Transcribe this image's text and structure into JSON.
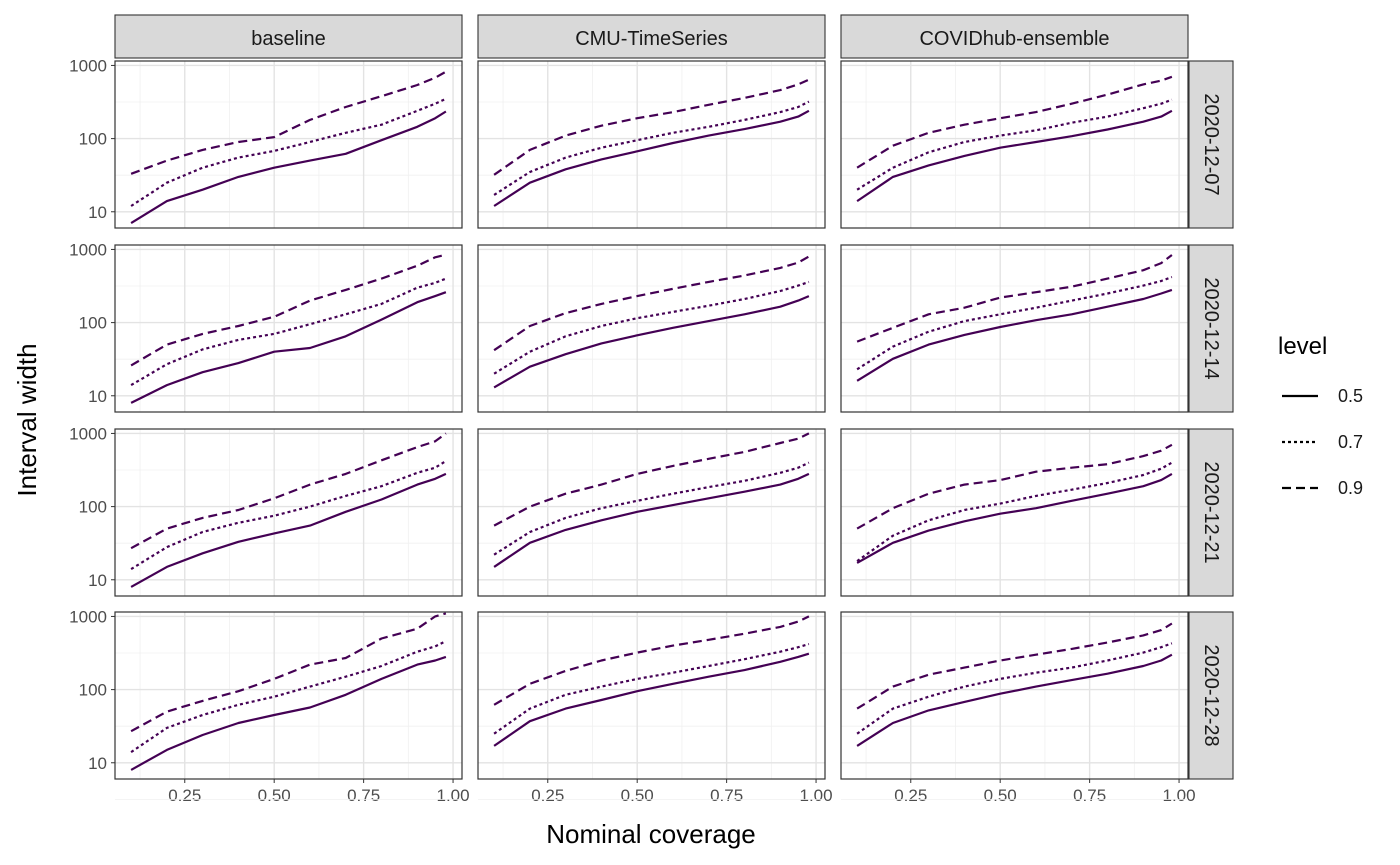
{
  "chart_data": {
    "type": "line",
    "facet_columns": [
      "baseline",
      "CMU-TimeSeries",
      "COVIDhub-ensemble"
    ],
    "facet_rows": [
      "2020-12-07",
      "2020-12-14",
      "2020-12-21",
      "2020-12-28"
    ],
    "xlabel": "Nominal coverage",
    "ylabel": "Interval width",
    "x_ticks": [
      "0.25",
      "0.50",
      "0.75",
      "1.00"
    ],
    "y_ticks": [
      "10",
      "100",
      "1000"
    ],
    "xlim": [
      0.055,
      1.025
    ],
    "ylim": [
      6,
      1150
    ],
    "y_scale": "log10",
    "grid": true,
    "legend": {
      "title": "level",
      "position": "right",
      "entries": [
        {
          "label": "0.5",
          "dash": "solid"
        },
        {
          "label": "0.7",
          "dash": "dotted"
        },
        {
          "label": "0.9",
          "dash": "dashed"
        }
      ]
    },
    "line_color": "#440154",
    "x": [
      0.1,
      0.2,
      0.3,
      0.4,
      0.5,
      0.6,
      0.7,
      0.8,
      0.9,
      0.95,
      0.98
    ],
    "panels": [
      {
        "row": "2020-12-07",
        "col": "baseline",
        "series": [
          {
            "name": "0.5",
            "values": [
              7,
              14,
              20,
              30,
              40,
              50,
              62,
              95,
              145,
              190,
              235
            ]
          },
          {
            "name": "0.7",
            "values": [
              12,
              25,
              40,
              55,
              68,
              90,
              120,
              155,
              240,
              300,
              350
            ]
          },
          {
            "name": "0.9",
            "values": [
              33,
              50,
              70,
              90,
              105,
              180,
              270,
              380,
              540,
              680,
              820
            ]
          }
        ]
      },
      {
        "row": "2020-12-07",
        "col": "CMU-TimeSeries",
        "series": [
          {
            "name": "0.5",
            "values": [
              12,
              25,
              38,
              52,
              67,
              87,
              110,
              135,
              170,
              200,
              240
            ]
          },
          {
            "name": "0.7",
            "values": [
              17,
              35,
              55,
              75,
              95,
              120,
              145,
              180,
              230,
              270,
              320
            ]
          },
          {
            "name": "0.9",
            "values": [
              32,
              70,
              110,
              150,
              190,
              230,
              290,
              360,
              460,
              550,
              640
            ]
          }
        ]
      },
      {
        "row": "2020-12-07",
        "col": "COVIDhub-ensemble",
        "series": [
          {
            "name": "0.5",
            "values": [
              14,
              30,
              43,
              58,
              75,
              90,
              108,
              133,
              170,
              200,
              240
            ]
          },
          {
            "name": "0.7",
            "values": [
              20,
              40,
              65,
              90,
              110,
              130,
              165,
              200,
              260,
              300,
              340
            ]
          },
          {
            "name": "0.9",
            "values": [
              40,
              80,
              120,
              155,
              190,
              230,
              300,
              400,
              550,
              620,
              700
            ]
          }
        ]
      },
      {
        "row": "2020-12-14",
        "col": "baseline",
        "series": [
          {
            "name": "0.5",
            "values": [
              8,
              14,
              21,
              28,
              40,
              45,
              65,
              110,
              190,
              230,
              260
            ]
          },
          {
            "name": "0.7",
            "values": [
              14,
              27,
              43,
              58,
              70,
              95,
              130,
              180,
              300,
              350,
              400
            ]
          },
          {
            "name": "0.9",
            "values": [
              26,
              50,
              70,
              90,
              120,
              200,
              280,
              400,
              600,
              780,
              850
            ]
          }
        ]
      },
      {
        "row": "2020-12-14",
        "col": "CMU-TimeSeries",
        "series": [
          {
            "name": "0.5",
            "values": [
              13,
              25,
              37,
              52,
              67,
              85,
              105,
              130,
              165,
              200,
              230
            ]
          },
          {
            "name": "0.7",
            "values": [
              20,
              40,
              65,
              90,
              115,
              140,
              170,
              210,
              270,
              320,
              360
            ]
          },
          {
            "name": "0.9",
            "values": [
              42,
              90,
              135,
              180,
              230,
              290,
              360,
              440,
              560,
              660,
              800
            ]
          }
        ]
      },
      {
        "row": "2020-12-14",
        "col": "COVIDhub-ensemble",
        "series": [
          {
            "name": "0.5",
            "values": [
              16,
              32,
              50,
              68,
              87,
              108,
              130,
              165,
              210,
              250,
              280
            ]
          },
          {
            "name": "0.7",
            "values": [
              23,
              47,
              75,
              105,
              130,
              160,
              200,
              250,
              320,
              370,
              420
            ]
          },
          {
            "name": "0.9",
            "values": [
              55,
              85,
              130,
              160,
              220,
              260,
              310,
              400,
              520,
              650,
              840
            ]
          }
        ]
      },
      {
        "row": "2020-12-21",
        "col": "baseline",
        "series": [
          {
            "name": "0.5",
            "values": [
              8,
              15,
              23,
              33,
              43,
              55,
              85,
              125,
              200,
              240,
              280
            ]
          },
          {
            "name": "0.7",
            "values": [
              14,
              28,
              45,
              60,
              75,
              100,
              140,
              190,
              290,
              340,
              420
            ]
          },
          {
            "name": "0.9",
            "values": [
              27,
              50,
              70,
              90,
              130,
              200,
              280,
              430,
              650,
              780,
              1000
            ]
          }
        ]
      },
      {
        "row": "2020-12-21",
        "col": "CMU-TimeSeries",
        "series": [
          {
            "name": "0.5",
            "values": [
              15,
              32,
              48,
              65,
              85,
              105,
              130,
              160,
              200,
              240,
              280
            ]
          },
          {
            "name": "0.7",
            "values": [
              22,
              45,
              70,
              95,
              120,
              150,
              185,
              225,
              290,
              340,
              400
            ]
          },
          {
            "name": "0.9",
            "values": [
              55,
              100,
              150,
              200,
              280,
              360,
              450,
              560,
              740,
              850,
              1000
            ]
          }
        ]
      },
      {
        "row": "2020-12-21",
        "col": "COVIDhub-ensemble",
        "series": [
          {
            "name": "0.5",
            "values": [
              17,
              32,
              47,
              63,
              80,
              95,
              120,
              150,
              190,
              230,
              280
            ]
          },
          {
            "name": "0.7",
            "values": [
              18,
              40,
              65,
              90,
              110,
              140,
              170,
              210,
              270,
              330,
              400
            ]
          },
          {
            "name": "0.9",
            "values": [
              50,
              95,
              150,
              200,
              230,
              300,
              340,
              380,
              490,
              580,
              700
            ]
          }
        ]
      },
      {
        "row": "2020-12-28",
        "col": "baseline",
        "series": [
          {
            "name": "0.5",
            "values": [
              8,
              15,
              24,
              35,
              45,
              57,
              85,
              140,
              220,
              250,
              280
            ]
          },
          {
            "name": "0.7",
            "values": [
              14,
              30,
              45,
              62,
              80,
              110,
              150,
              210,
              330,
              390,
              460
            ]
          },
          {
            "name": "0.9",
            "values": [
              27,
              50,
              70,
              95,
              140,
              220,
              270,
              500,
              680,
              1000,
              1100
            ]
          }
        ]
      },
      {
        "row": "2020-12-28",
        "col": "CMU-TimeSeries",
        "series": [
          {
            "name": "0.5",
            "values": [
              17,
              37,
              55,
              72,
              95,
              120,
              150,
              185,
              240,
              280,
              310
            ]
          },
          {
            "name": "0.7",
            "values": [
              25,
              55,
              85,
              110,
              140,
              170,
              210,
              260,
              330,
              380,
              420
            ]
          },
          {
            "name": "0.9",
            "values": [
              62,
              120,
              180,
              250,
              320,
              400,
              480,
              580,
              720,
              850,
              1000
            ]
          }
        ]
      },
      {
        "row": "2020-12-28",
        "col": "COVIDhub-ensemble",
        "series": [
          {
            "name": "0.5",
            "values": [
              17,
              35,
              52,
              68,
              88,
              110,
              135,
              165,
              210,
              250,
              300
            ]
          },
          {
            "name": "0.7",
            "values": [
              25,
              55,
              80,
              110,
              140,
              170,
              200,
              250,
              320,
              380,
              430
            ]
          },
          {
            "name": "0.9",
            "values": [
              55,
              110,
              160,
              200,
              250,
              300,
              360,
              440,
              550,
              650,
              800
            ]
          }
        ]
      }
    ]
  }
}
